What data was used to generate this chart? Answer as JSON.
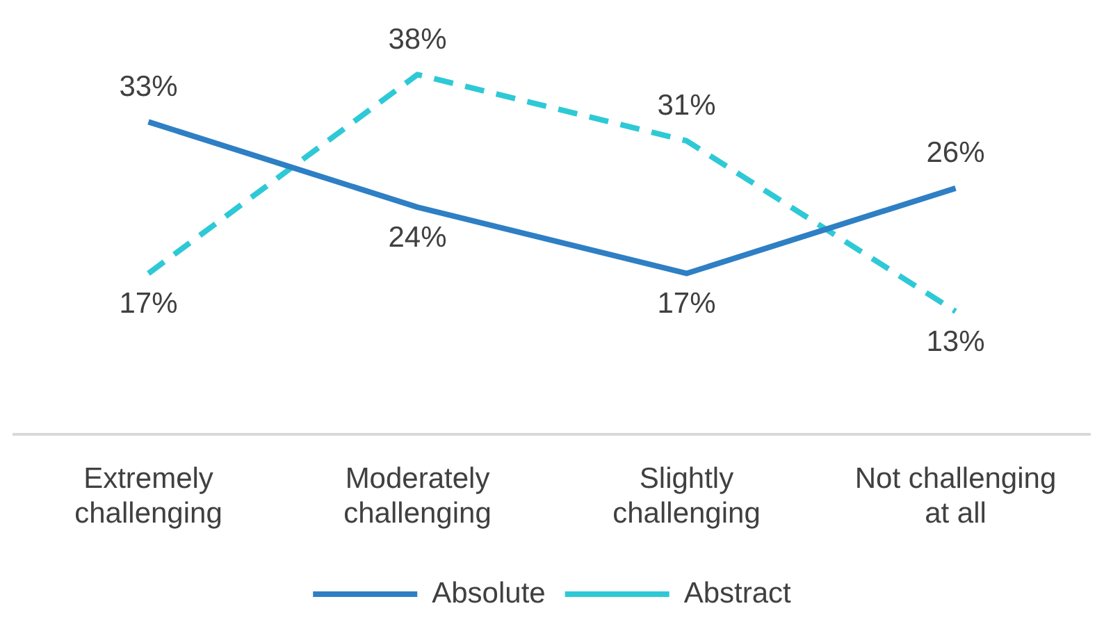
{
  "chart_data": {
    "type": "line",
    "categories": [
      "Extremely challenging",
      "Moderately challenging",
      "Slightly challenging",
      "Not challenging at all"
    ],
    "series": [
      {
        "name": "Absolute",
        "color": "#2e7fc4",
        "values": [
          33,
          24,
          17,
          26
        ],
        "value_labels": [
          "33%",
          "24%",
          "17%",
          "26%"
        ],
        "line_style": "solid"
      },
      {
        "name": "Abstract",
        "color": "#2ec9d6",
        "values": [
          17,
          38,
          31,
          13
        ],
        "value_labels": [
          "17%",
          "38%",
          "31%",
          "13%"
        ],
        "line_style": "dashed"
      }
    ],
    "tick_labels": "x",
    "grid": false,
    "legend": "bottom",
    "marker": "none"
  }
}
